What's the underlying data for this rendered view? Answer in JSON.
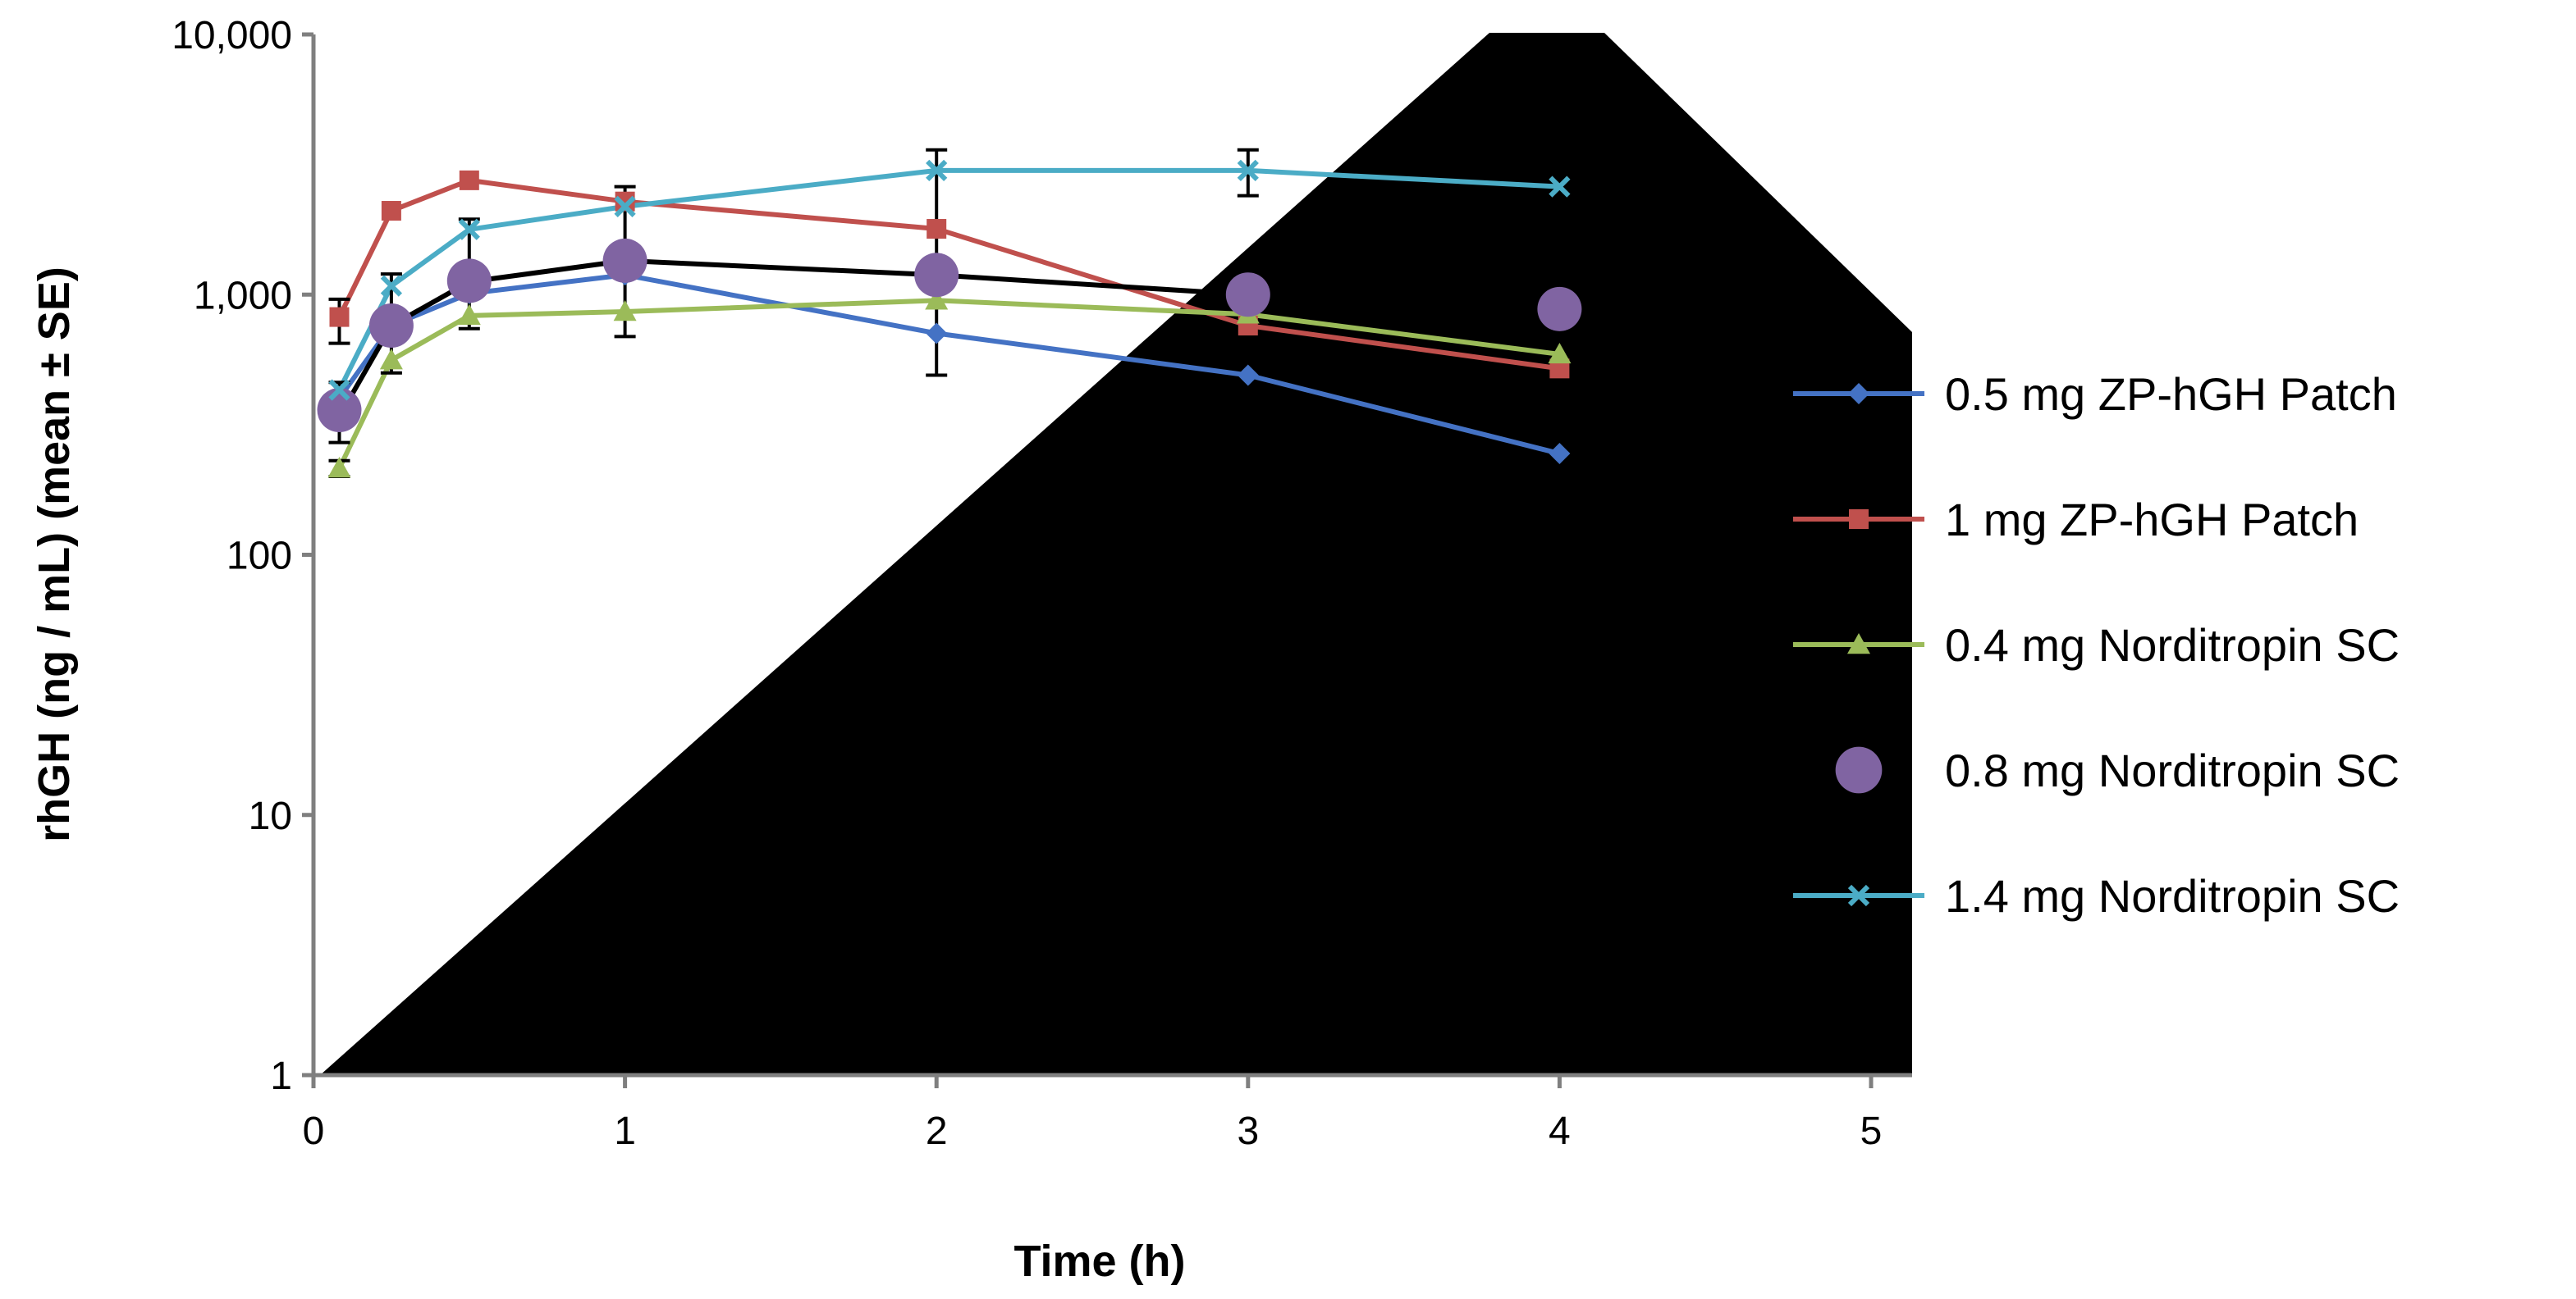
{
  "chart_data": {
    "type": "line",
    "title": "",
    "xlabel": "Time (h)",
    "ylabel": "rhGH (ng / mL) (mean ± SE)",
    "y_scale": "log",
    "xlim": [
      0,
      5
    ],
    "ylim": [
      1,
      10000
    ],
    "x_ticks": [
      0,
      1,
      2,
      3,
      4,
      5
    ],
    "x_tick_labels": [
      "0",
      "1",
      "2",
      "3",
      "4",
      "5"
    ],
    "y_ticks": [
      1,
      10,
      100,
      1000,
      10000
    ],
    "y_tick_labels": [
      "1",
      "10",
      "100",
      "1,000",
      "10,000"
    ],
    "legend_position": "right",
    "series": [
      {
        "name": "0.5 mg ZP-hGH Patch",
        "color": "#4472C4",
        "marker": "diamond",
        "line": true,
        "x": [
          0.083,
          0.25,
          0.5,
          1,
          2,
          3,
          4
        ],
        "values": [
          400,
          760,
          1010,
          1190,
          710,
          490,
          245
        ]
      },
      {
        "name": "1 mg ZP-hGH Patch",
        "color": "#C0504D",
        "marker": "square",
        "line": true,
        "x": [
          0.083,
          0.25,
          0.5,
          1,
          2,
          3,
          4
        ],
        "values": [
          820,
          2100,
          2750,
          2280,
          1790,
          760,
          520
        ]
      },
      {
        "name": "0.4 mg Norditropin SC",
        "color": "#9BBB59",
        "marker": "triangle",
        "line": true,
        "x": [
          0.083,
          0.25,
          0.5,
          1,
          2,
          3,
          4
        ],
        "values": [
          215,
          560,
          830,
          860,
          950,
          840,
          590
        ]
      },
      {
        "name": "0.8 mg Norditropin SC",
        "color": "#8064A2",
        "marker": "circle",
        "line": false,
        "x": [
          0.083,
          0.25,
          0.5,
          1,
          2,
          3,
          4
        ],
        "values": [
          360,
          760,
          1130,
          1350,
          1190,
          1000,
          880
        ]
      },
      {
        "name": "1.4 mg Norditropin SC",
        "color": "#4BACC6",
        "marker": "x",
        "line": true,
        "x": [
          0.083,
          0.25,
          0.5,
          1,
          2,
          3,
          4
        ],
        "values": [
          430,
          1080,
          1780,
          2180,
          3000,
          3000,
          2600
        ]
      },
      {
        "name": "",
        "color": "#000000",
        "marker": "none",
        "line": true,
        "legend": false,
        "x": [
          0.083,
          0.25,
          0.5,
          1,
          2,
          3
        ],
        "values": [
          340,
          760,
          1120,
          1350,
          1190,
          1000
        ]
      }
    ],
    "error_bars": [
      {
        "x": 0.083,
        "low": 270,
        "high": 460
      },
      {
        "x": 0.083,
        "low": 650,
        "high": 960
      },
      {
        "x": 0.083,
        "low": 200,
        "high": 230
      },
      {
        "x": 0.25,
        "low": 500,
        "high": 1200
      },
      {
        "x": 0.5,
        "low": 740,
        "high": 1950
      },
      {
        "x": 1,
        "low": 690,
        "high": 2600
      },
      {
        "x": 2,
        "low": 490,
        "high": 3600
      },
      {
        "x": 3,
        "low": 2400,
        "high": 3600
      }
    ],
    "occluding_shape": "black polygon covering the lower-right region of the plot"
  }
}
